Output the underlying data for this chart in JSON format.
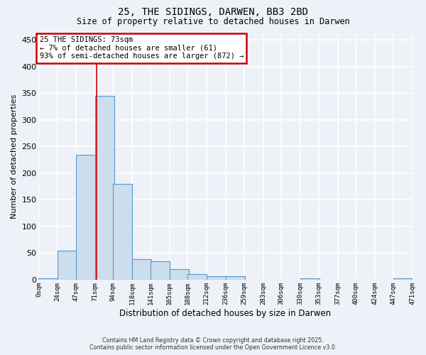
{
  "title1": "25, THE SIDINGS, DARWEN, BB3 2BD",
  "title2": "Size of property relative to detached houses in Darwen",
  "xlabel": "Distribution of detached houses by size in Darwen",
  "ylabel": "Number of detached properties",
  "footnote1": "Contains HM Land Registry data © Crown copyright and database right 2025.",
  "footnote2": "Contains public sector information licensed under the Open Government Licence v3.0.",
  "annotation_line1": "25 THE SIDINGS: 73sqm",
  "annotation_line2": "← 7% of detached houses are smaller (61)",
  "annotation_line3": "93% of semi-detached houses are larger (872) →",
  "bar_color": "#ccdded",
  "bar_edge_color": "#5599cc",
  "annotation_edge_color": "#cc0000",
  "annotation_line_color": "#cc0000",
  "background_color": "#eef2f8",
  "grid_color": "#ffffff",
  "property_line_x": 73,
  "bin_edges": [
    0,
    24,
    47,
    71,
    94,
    118,
    141,
    165,
    188,
    212,
    236,
    259,
    283,
    306,
    330,
    353,
    377,
    400,
    424,
    447,
    471
  ],
  "bin_labels": [
    "0sqm",
    "24sqm",
    "47sqm",
    "71sqm",
    "94sqm",
    "118sqm",
    "141sqm",
    "165sqm",
    "188sqm",
    "212sqm",
    "236sqm",
    "259sqm",
    "283sqm",
    "306sqm",
    "330sqm",
    "353sqm",
    "377sqm",
    "400sqm",
    "424sqm",
    "447sqm",
    "471sqm"
  ],
  "bar_heights": [
    3,
    55,
    235,
    345,
    180,
    38,
    35,
    20,
    11,
    6,
    7,
    0,
    0,
    0,
    2,
    0,
    0,
    0,
    0,
    2
  ],
  "ylim": [
    0,
    462
  ],
  "yticks": [
    0,
    50,
    100,
    150,
    200,
    250,
    300,
    350,
    400,
    450
  ]
}
